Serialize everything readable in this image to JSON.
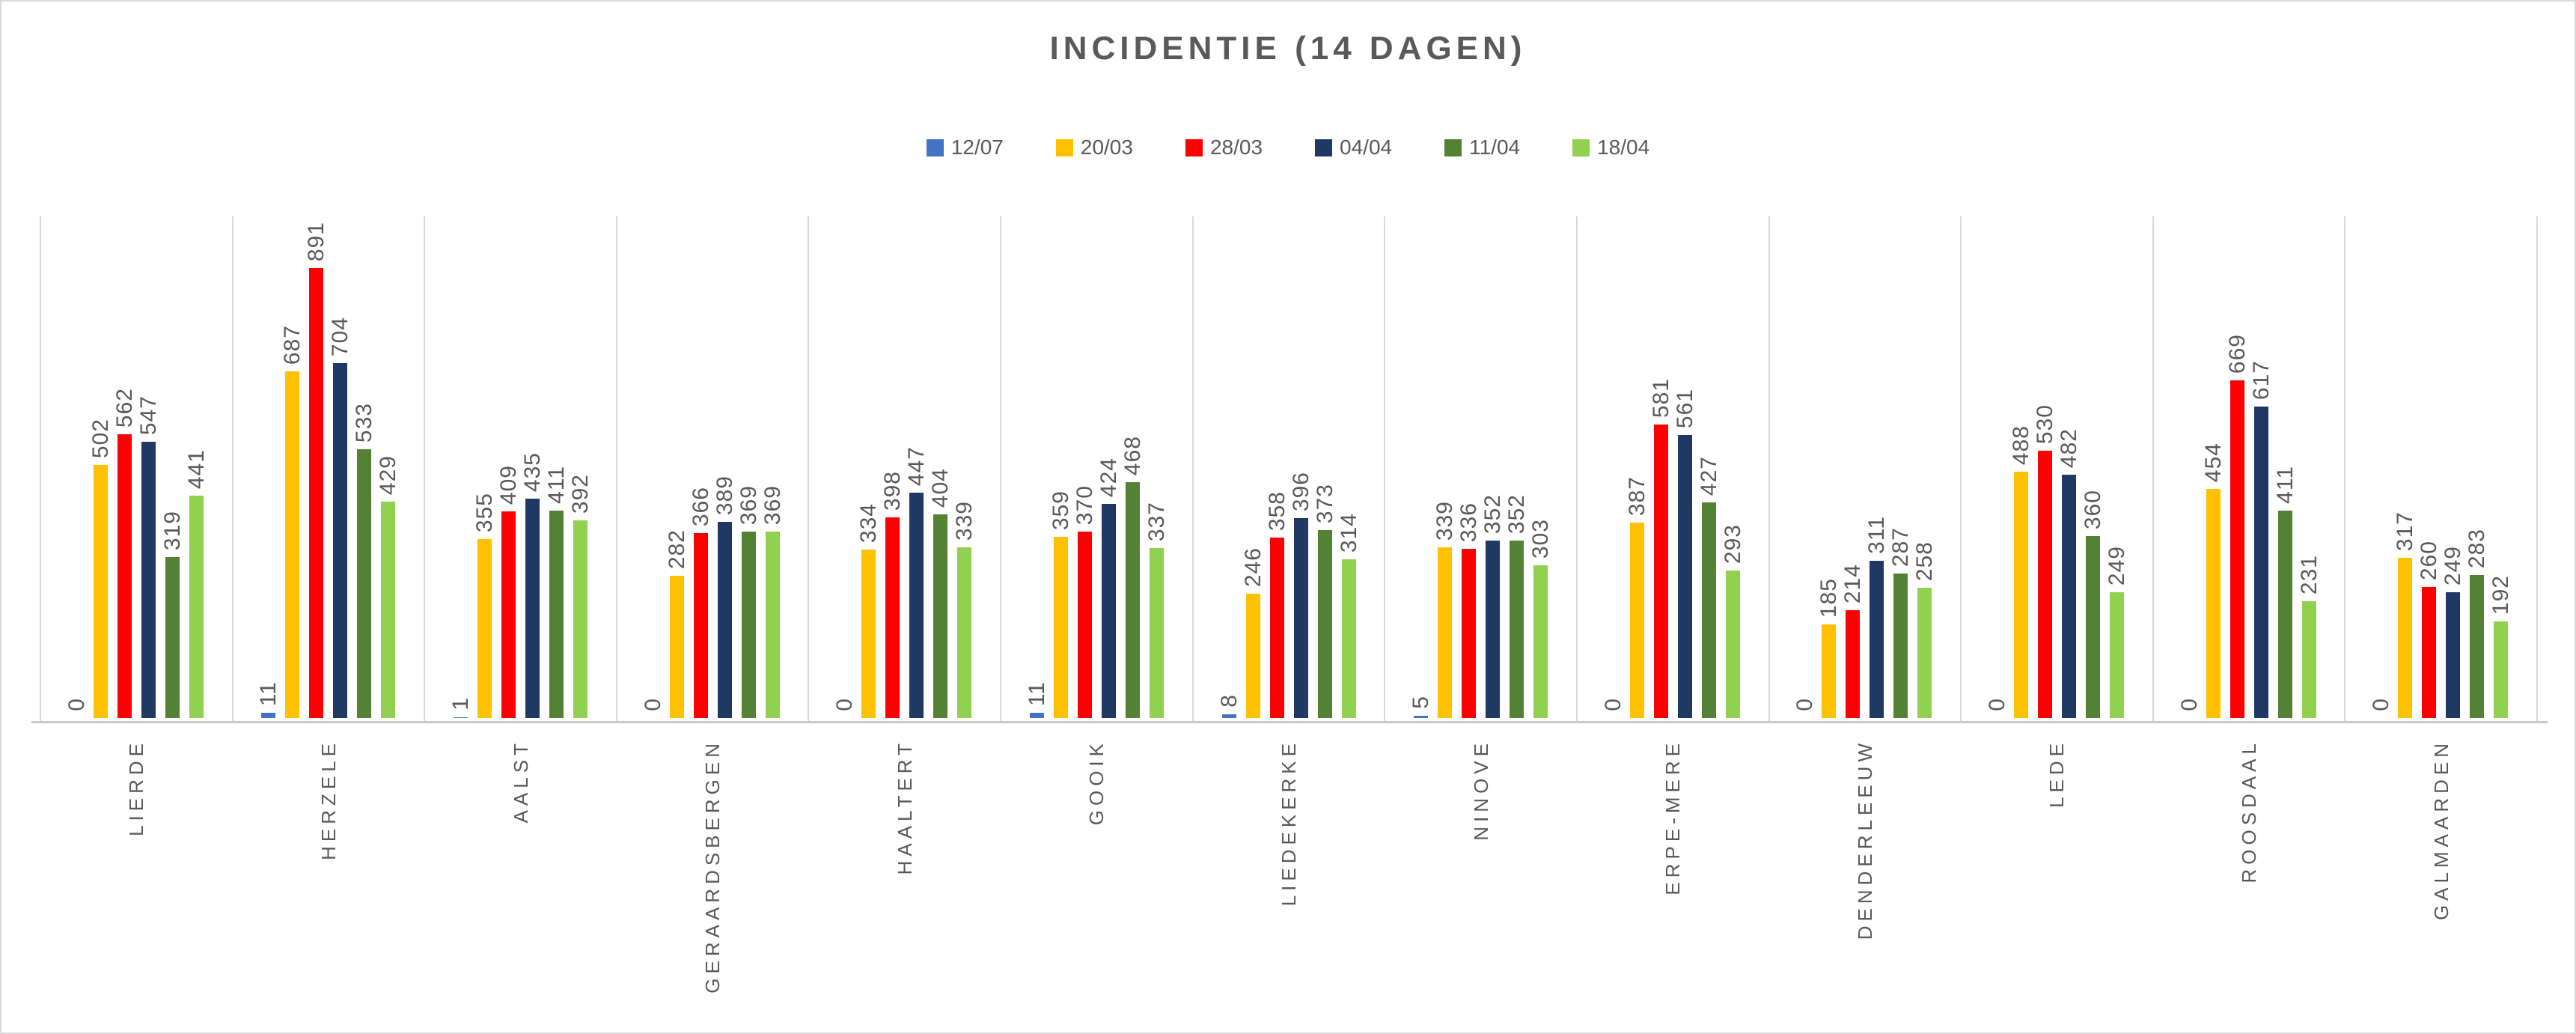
{
  "title": "INCIDENTIE (14 DAGEN)",
  "chart_data": {
    "type": "bar",
    "title": "INCIDENTIE (14 DAGEN)",
    "xlabel": "",
    "ylabel": "",
    "ylim": [
      0,
      1000
    ],
    "grid": "vertical category separators only, no horizontal gridlines, no y-axis labels",
    "legend_position": "top",
    "value_labels": "rotated 90° above each bar",
    "text_color": "#595959",
    "gridline_color": "#d9d9d9",
    "categories": [
      "LIERDE",
      "HERZELE",
      "AALST",
      "GERAARDSBERGEN",
      "HAALTERT",
      "GOOIK",
      "LIEDEKERKE",
      "NINOVE",
      "ERPE-MERE",
      "DENDERLEEUW",
      "LEDE",
      "ROOSDAAL",
      "GALMAARDEN"
    ],
    "series": [
      {
        "name": "12/07",
        "color": "#4472C4",
        "values": [
          0,
          11,
          1,
          0,
          0,
          11,
          8,
          5,
          0,
          0,
          0,
          0,
          0
        ]
      },
      {
        "name": "20/03",
        "color": "#FFC000",
        "values": [
          502,
          687,
          355,
          282,
          334,
          359,
          246,
          339,
          387,
          185,
          488,
          454,
          317
        ]
      },
      {
        "name": "28/03",
        "color": "#FF0000",
        "values": [
          562,
          891,
          409,
          366,
          398,
          370,
          358,
          336,
          581,
          214,
          530,
          669,
          260
        ]
      },
      {
        "name": "04/04",
        "color": "#203864",
        "values": [
          547,
          704,
          435,
          389,
          447,
          424,
          396,
          352,
          561,
          311,
          482,
          617,
          249
        ]
      },
      {
        "name": "11/04",
        "color": "#548235",
        "values": [
          319,
          533,
          411,
          369,
          404,
          468,
          373,
          352,
          427,
          287,
          360,
          411,
          283
        ]
      },
      {
        "name": "18/04",
        "color": "#92D050",
        "values": [
          441,
          429,
          392,
          369,
          339,
          337,
          314,
          303,
          293,
          258,
          249,
          231,
          192
        ]
      }
    ]
  }
}
